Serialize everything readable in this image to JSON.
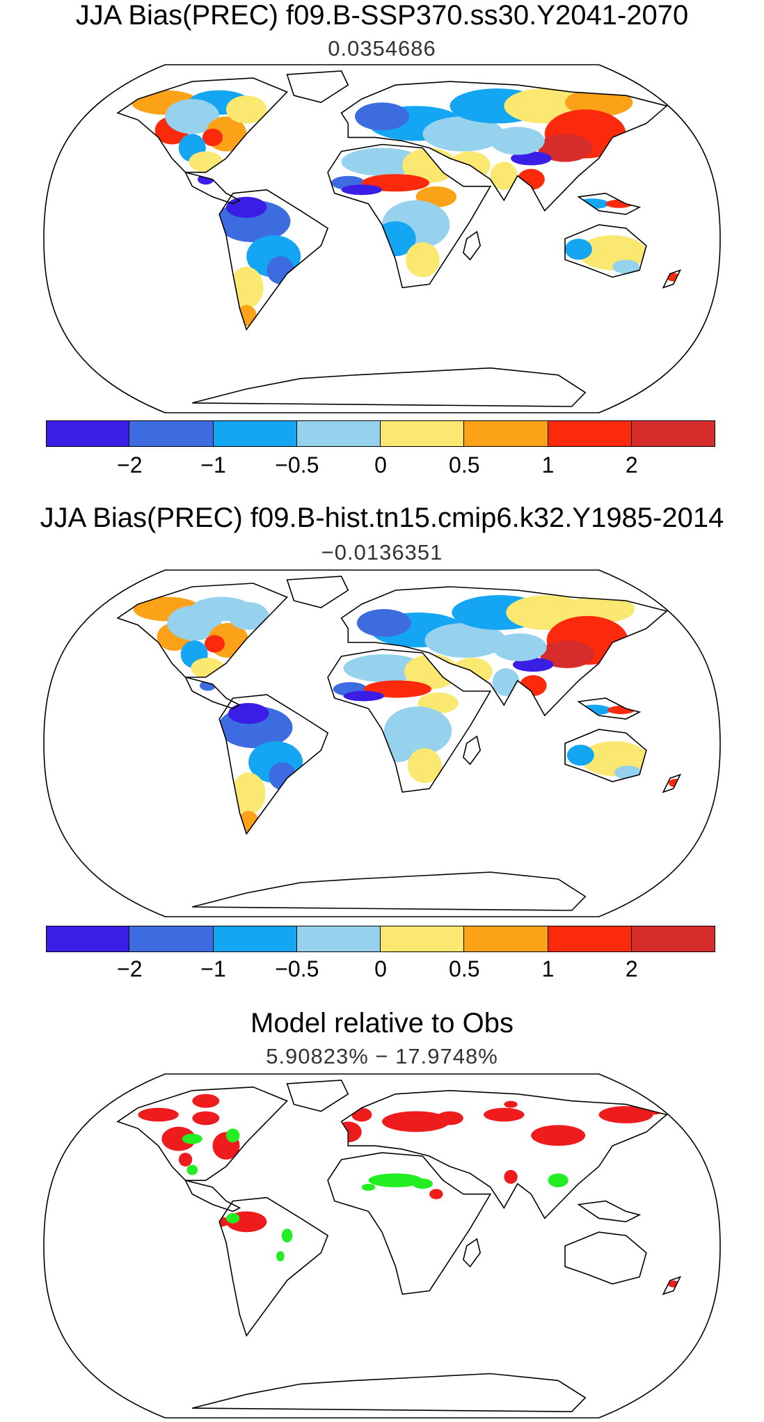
{
  "panels": [
    {
      "title": "JJA Bias(PREC) f09.B-SSP370.ss30.Y2041-2070",
      "subtitle": "0.0354686",
      "type": "bias"
    },
    {
      "title": "JJA Bias(PREC) f09.B-hist.tn15.cmip6.k32.Y1985-2014",
      "subtitle": "−0.0136351",
      "type": "bias"
    },
    {
      "title": "Model relative to Obs",
      "subtitle": "5.90823% − 17.9748%",
      "type": "relative"
    }
  ],
  "colorbar": {
    "colors": [
      "#3b1ee6",
      "#3c6ce0",
      "#14a6f2",
      "#96d2ee",
      "#fbe870",
      "#fca218",
      "#fc2a0c",
      "#d62c2c"
    ],
    "tick_labels": [
      "−2",
      "−1",
      "−0.5",
      "0",
      "0.5",
      "1",
      "2"
    ]
  },
  "relative_colors": {
    "worse": "#ee1c1c",
    "better": "#22ee22"
  }
}
